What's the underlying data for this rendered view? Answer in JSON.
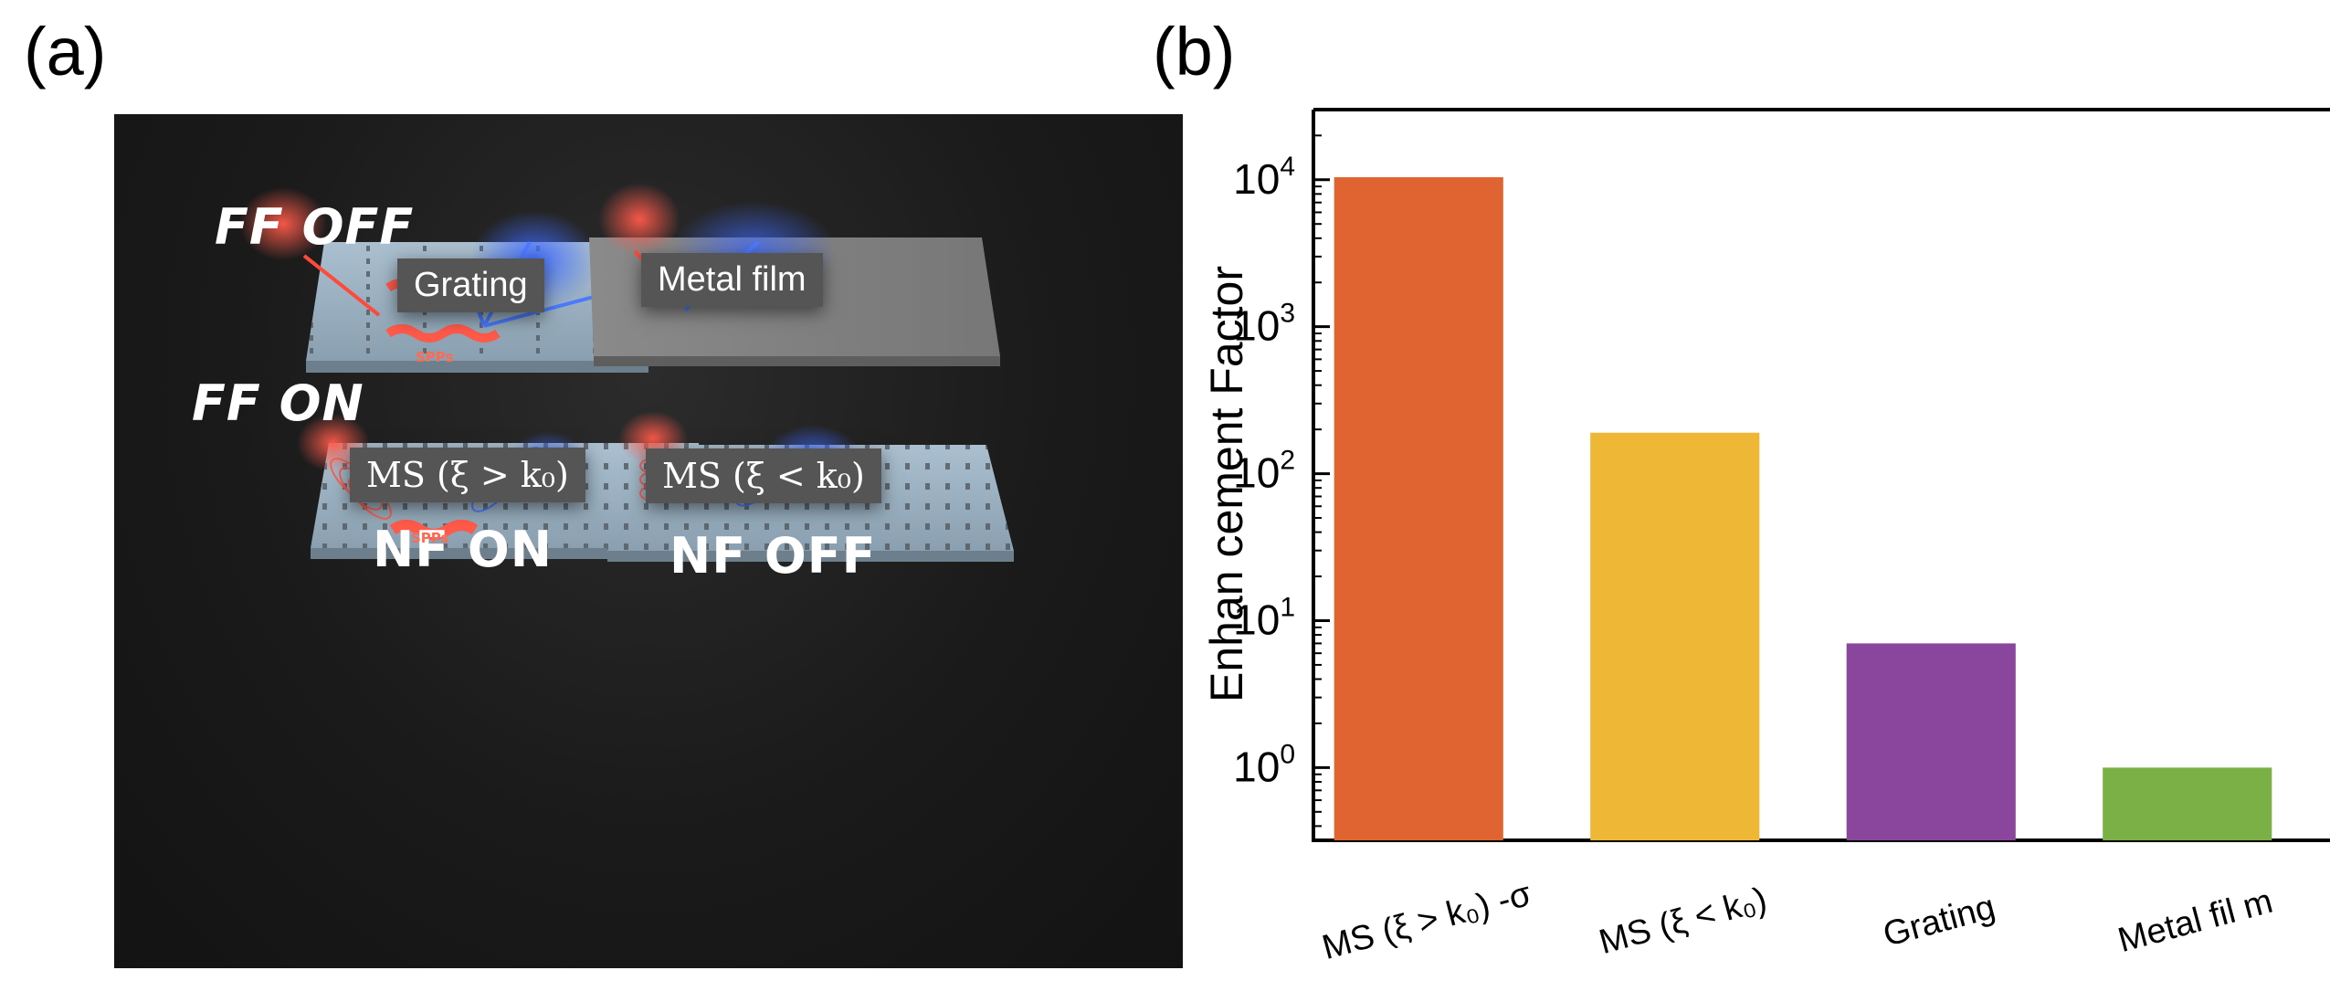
{
  "panels": {
    "a": "(a)",
    "b": "(b)"
  },
  "illustration": {
    "states": {
      "ff_off": "FF OFF",
      "ff_on": "FF ON",
      "nf_on": "NF ON",
      "nf_off": "NF OFF"
    },
    "plates": {
      "grating": "Grating",
      "metal_film": "Metal film",
      "ms_large": "MS (ξ > k₀)",
      "ms_small": "MS (ξ < k₀)"
    },
    "spp_label": "SPPs",
    "colors": {
      "red_beam": "#ff5a4a",
      "blue_beam": "#3f6bff",
      "plate": "#9fb4c4",
      "background": "#1a1a1a"
    }
  },
  "chart_data": {
    "type": "bar",
    "categories": [
      "MS (ξ > k₀) -σ",
      "MS (ξ < k₀)",
      "Grating",
      "Metal fil m"
    ],
    "values": [
      10400,
      190,
      7,
      1
    ],
    "colors": [
      "#e06431",
      "#eeb735",
      "#8a459c",
      "#7ab045"
    ],
    "ylabel": "Enhan cement Factor",
    "yscale": "log",
    "ylim": [
      0.32,
      30000
    ],
    "yticks": [
      {
        "base": "10",
        "exp": "0",
        "value": 1
      },
      {
        "base": "10",
        "exp": "1",
        "value": 10
      },
      {
        "base": "10",
        "exp": "2",
        "value": 100
      },
      {
        "base": "10",
        "exp": "3",
        "value": 1000
      },
      {
        "base": "10",
        "exp": "4",
        "value": 10000
      }
    ],
    "grid": false,
    "legend": "none"
  }
}
